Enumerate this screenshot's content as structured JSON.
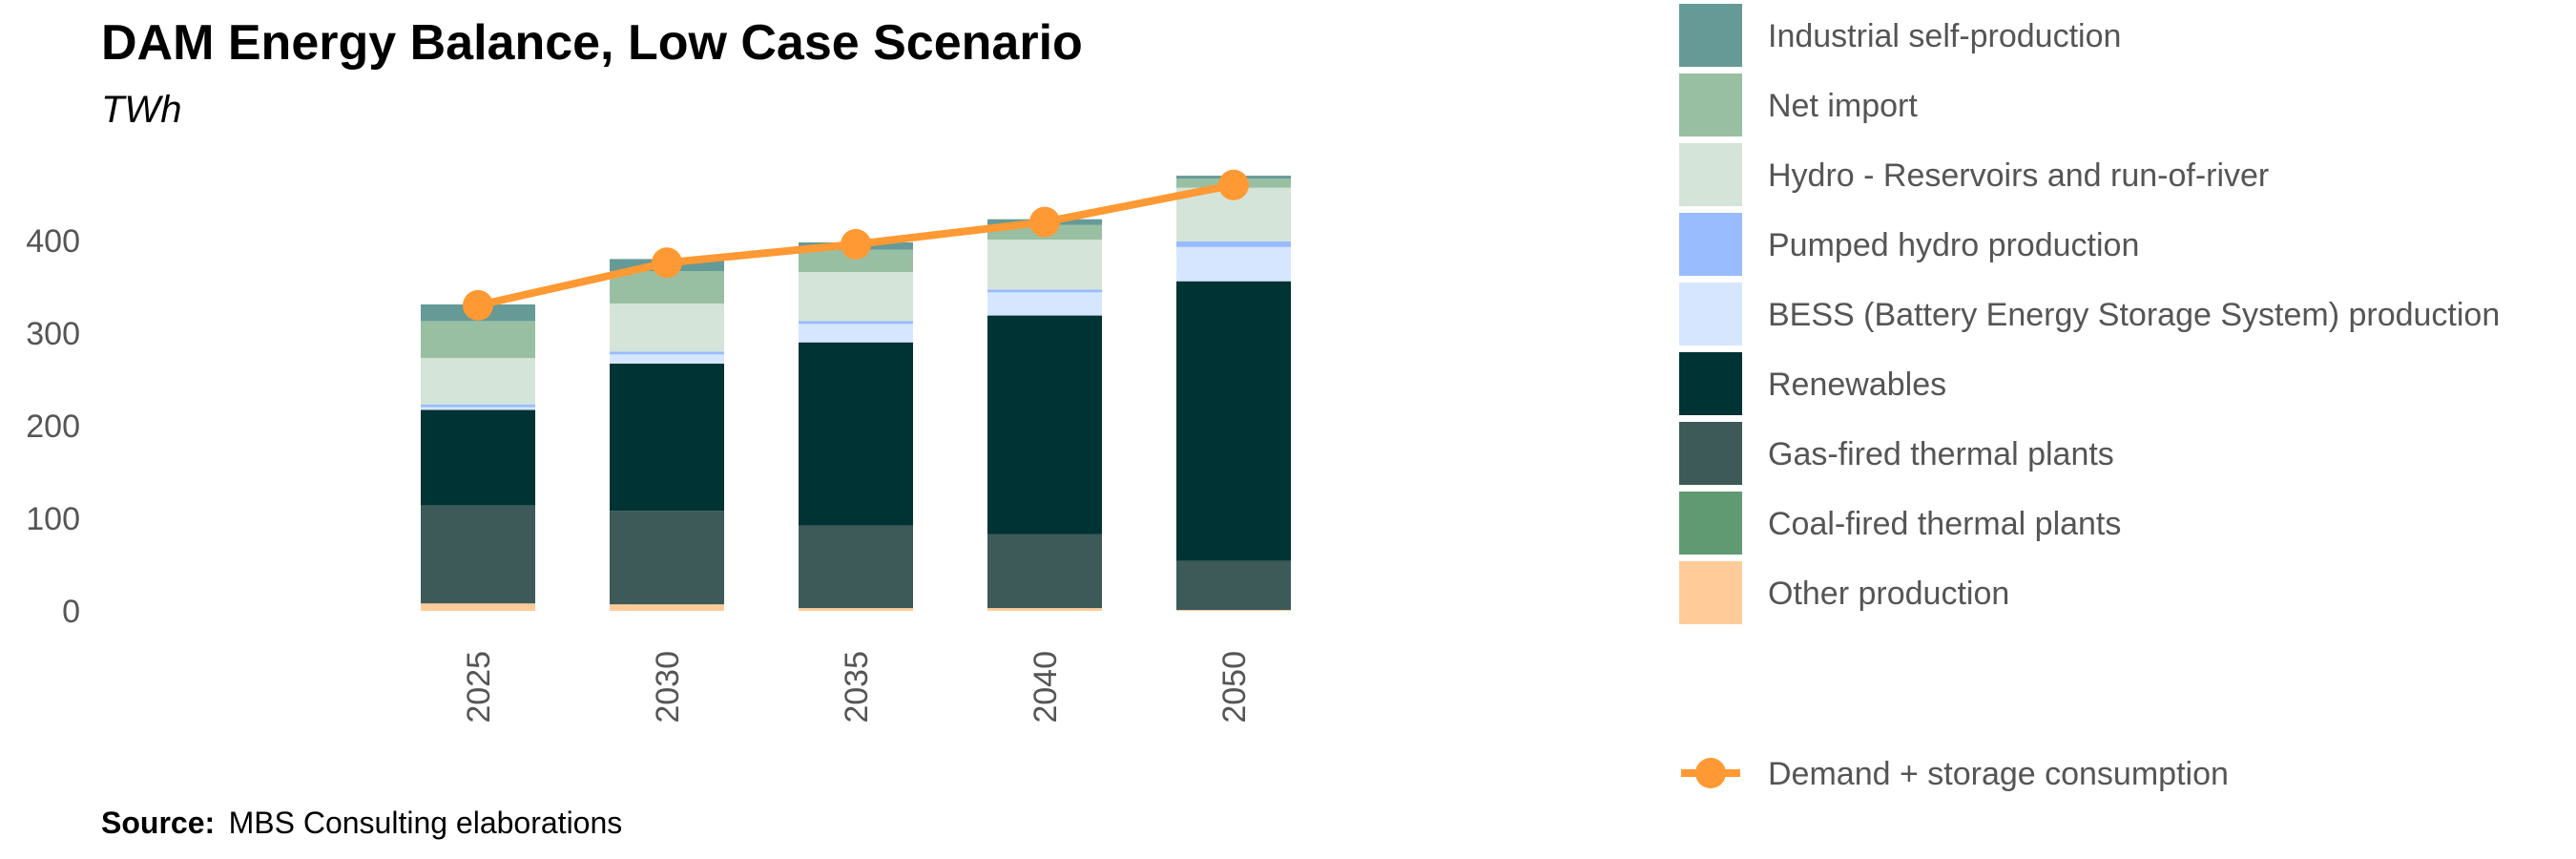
{
  "chart_data": {
    "type": "bar",
    "stacked": true,
    "title": "DAM Energy Balance, Low Case Scenario",
    "subtitle": "TWh",
    "xlabel": "",
    "ylabel": "",
    "categories": [
      "2025",
      "2030",
      "2035",
      "2040",
      "2050"
    ],
    "ylim": [
      0,
      480
    ],
    "y_ticks": [
      0,
      100,
      200,
      300,
      400
    ],
    "grid": false,
    "legend_position": "right",
    "series": [
      {
        "name": "Other production",
        "color": "#FFCC99",
        "values": [
          8,
          7,
          3,
          3,
          1
        ]
      },
      {
        "name": "Coal-fired thermal plants",
        "color": "#5F9A73",
        "values": [
          0,
          0,
          0,
          0,
          0
        ]
      },
      {
        "name": "Gas-fired thermal plants",
        "color": "#3D5A58",
        "values": [
          106,
          101,
          89,
          80,
          53
        ]
      },
      {
        "name": "Renewables",
        "color": "#003333",
        "values": [
          103,
          159,
          198,
          236,
          302
        ]
      },
      {
        "name": "BESS (Battery Energy Storage System) production",
        "color": "#D6E6FF",
        "values": [
          3,
          10,
          20,
          25,
          37
        ]
      },
      {
        "name": "Pumped hydro production",
        "color": "#99BBFF",
        "values": [
          3,
          3,
          3,
          3,
          6
        ]
      },
      {
        "name": "Hydro - Reservoirs and run-of-river",
        "color": "#D4E4D8",
        "values": [
          50,
          52,
          53,
          54,
          58
        ]
      },
      {
        "name": "Net import",
        "color": "#99BFA3",
        "values": [
          40,
          35,
          24,
          16,
          10
        ]
      },
      {
        "name": "Industrial self-production",
        "color": "#659A97",
        "values": [
          18,
          13,
          8,
          6,
          3
        ]
      }
    ],
    "line_series": {
      "name": "Demand + storage consumption",
      "color": "#FF9933",
      "values": [
        330,
        376,
        396,
        420,
        460
      ]
    },
    "source_label": "Source:",
    "source_text": "MBS Consulting elaborations"
  }
}
